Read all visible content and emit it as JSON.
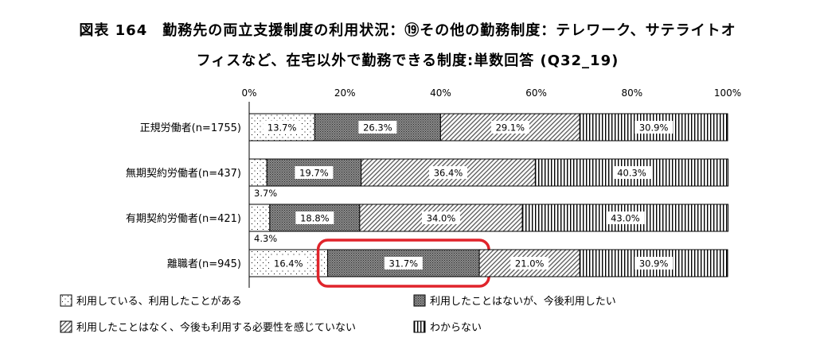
{
  "chart_data": {
    "type": "bar",
    "orientation": "horizontal",
    "stacked": true,
    "normalized": true,
    "title_line1": "図表 164　勤務先の両立支援制度の利用状況：⑲その他の勤務制度：テレワーク、サテライトオ",
    "title_line2": "フィスなど、在宅以外で勤務できる制度:単数回答 (Q32_19)",
    "x_ticks": [
      "0%",
      "20%",
      "40%",
      "60%",
      "80%",
      "100%"
    ],
    "xlim": [
      0,
      100
    ],
    "grid": false,
    "legend_position": "bottom",
    "categories": [
      "正規労働者(n=1755)",
      "無期契約労働者(n=437)",
      "有期契約労働者(n=421)",
      "離職者(n=945)"
    ],
    "series": [
      {
        "name": "利用している、利用したことがある",
        "pattern": "dots",
        "values": [
          13.7,
          3.7,
          4.3,
          16.4
        ],
        "labels": [
          "13.7%",
          "3.7%",
          "4.3%",
          "16.4%"
        ]
      },
      {
        "name": "利用したことはないが、今後利用したい",
        "pattern": "dense",
        "values": [
          26.3,
          19.7,
          18.8,
          31.7
        ],
        "labels": [
          "26.3%",
          "19.7%",
          "18.8%",
          "31.7%"
        ]
      },
      {
        "name": "利用したことはなく、今後も利用する必要性を感じていない",
        "pattern": "diagonal",
        "values": [
          29.1,
          36.4,
          34.0,
          21.0
        ],
        "labels": [
          "29.1%",
          "36.4%",
          "34.0%",
          "21.0%"
        ]
      },
      {
        "name": "わからない",
        "pattern": "vertical",
        "values": [
          30.9,
          40.3,
          43.0,
          30.9
        ],
        "labels": [
          "30.9%",
          "40.3%",
          "43.0%",
          "30.9%"
        ]
      }
    ],
    "highlight": {
      "category_index": 3,
      "series_index": 1,
      "color": "#e0242b"
    },
    "colors": {
      "axis": "#000000",
      "highlight": "#e0242b"
    }
  }
}
